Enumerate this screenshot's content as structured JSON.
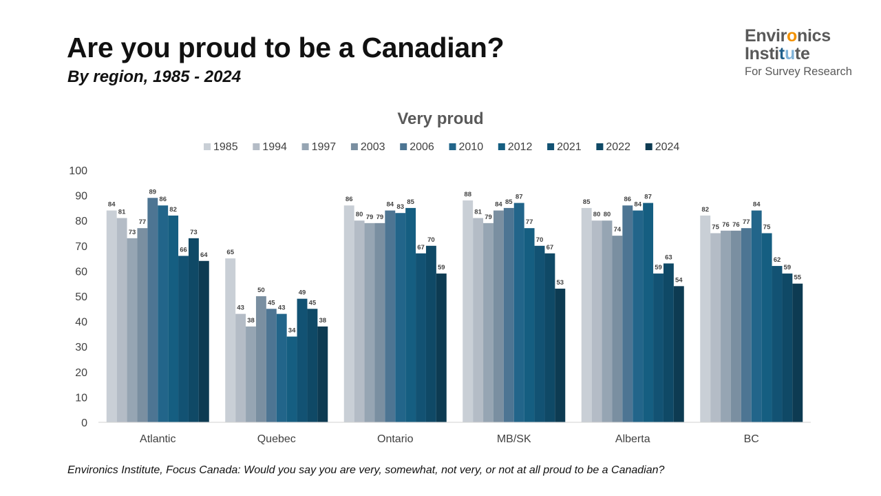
{
  "header": {
    "title": "Are you proud to be a Canadian?",
    "subtitle": "By region, 1985 - 2024"
  },
  "logo": {
    "line1_a": "Envir",
    "line1_b": "o",
    "line1_c": "nics",
    "line2_a": "Insti",
    "line2_b": "t",
    "line2_c": "u",
    "line2_d": "te",
    "line3": "For Survey Research",
    "accent_colors": {
      "o": "#f29100",
      "t": "#1f5f8b",
      "u": "#7fb2d8"
    }
  },
  "footnote": "Environics Institute, Focus Canada: Would you say you are very, somewhat, not very, or not at all proud to be a Canadian?",
  "chart_data": {
    "type": "bar",
    "title": "Very proud",
    "xlabel": "",
    "ylabel": "",
    "ylim": [
      0,
      100
    ],
    "yticks": [
      0,
      10,
      20,
      30,
      40,
      50,
      60,
      70,
      80,
      90,
      100
    ],
    "grid": false,
    "legend_position": "top",
    "data_labels": true,
    "categories": [
      "Atlantic",
      "Quebec",
      "Ontario",
      "MB/SK",
      "Alberta",
      "BC"
    ],
    "series": [
      {
        "name": "1985",
        "color": "#c9cfd6",
        "values": [
          84,
          65,
          86,
          88,
          85,
          82
        ]
      },
      {
        "name": "1994",
        "color": "#b4bcc6",
        "values": [
          81,
          43,
          80,
          81,
          80,
          75
        ]
      },
      {
        "name": "1997",
        "color": "#96a5b3",
        "values": [
          73,
          38,
          79,
          79,
          80,
          76
        ]
      },
      {
        "name": "2003",
        "color": "#7a8fa1",
        "values": [
          77,
          50,
          79,
          84,
          74,
          76
        ]
      },
      {
        "name": "2006",
        "color": "#4d7593",
        "values": [
          89,
          45,
          84,
          85,
          86,
          77
        ]
      },
      {
        "name": "2010",
        "color": "#22658a",
        "values": [
          86,
          43,
          83,
          87,
          84,
          84
        ]
      },
      {
        "name": "2012",
        "color": "#155e81",
        "values": [
          82,
          34,
          85,
          77,
          87,
          75
        ]
      },
      {
        "name": "2021",
        "color": "#125273",
        "values": [
          66,
          49,
          67,
          70,
          59,
          62
        ]
      },
      {
        "name": "2022",
        "color": "#0f4966",
        "values": [
          73,
          45,
          70,
          67,
          63,
          59
        ]
      },
      {
        "name": "2024",
        "color": "#0d3b52",
        "values": [
          64,
          38,
          59,
          53,
          54,
          55
        ]
      }
    ]
  }
}
